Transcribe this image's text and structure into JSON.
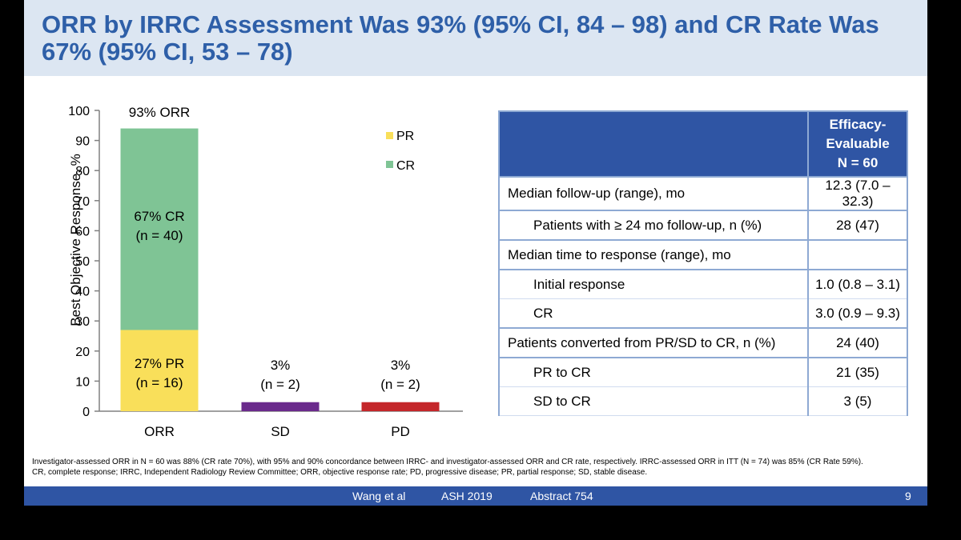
{
  "title": "ORR by IRRC Assessment Was 93% (95% CI, 84 – 98) and CR Rate Was 67% (95% CI, 53 – 78)",
  "colors": {
    "pr": "#f9df5a",
    "cr": "#7fc495",
    "sd": "#6a2a8c",
    "pd": "#c4262a",
    "header": "#2f55a4",
    "title": "#2e5fa8"
  },
  "chart_data": {
    "type": "bar",
    "stacked": true,
    "ylabel": "Best Objective Response, %",
    "ylim": [
      0,
      100
    ],
    "yticks": [
      0,
      10,
      20,
      30,
      40,
      50,
      60,
      70,
      80,
      90,
      100
    ],
    "categories": [
      "ORR",
      "SD",
      "PD"
    ],
    "series": [
      {
        "name": "PR",
        "values": [
          27,
          0,
          0
        ]
      },
      {
        "name": "CR",
        "values": [
          67,
          0,
          0
        ]
      },
      {
        "name": "SD",
        "values": [
          0,
          3,
          0
        ]
      },
      {
        "name": "PD",
        "values": [
          0,
          0,
          3
        ]
      }
    ],
    "legend": [
      "PR",
      "CR"
    ],
    "annotations": {
      "orr_total": "93% ORR",
      "cr_line1": "67% CR",
      "cr_line2": "(n = 40)",
      "pr_line1": "27% PR",
      "pr_line2": "(n = 16)",
      "sd_line1": "3%",
      "sd_line2": "(n = 2)",
      "pd_line1": "3%",
      "pd_line2": "(n = 2)"
    }
  },
  "table": {
    "header_line1": "Efficacy-",
    "header_line2": "Evaluable",
    "header_line3": "N = 60",
    "rows": [
      {
        "label": "Median follow-up (range), mo",
        "value": "12.3 (7.0 – 32.3)"
      },
      {
        "label": "Patients with ≥ 24 mo follow-up, n (%)",
        "value": "28 (47)"
      },
      {
        "label": "Median time to response (range), mo",
        "value": ""
      },
      {
        "label": "Initial response",
        "value": "1.0 (0.8 – 3.1)"
      },
      {
        "label": "CR",
        "value": "3.0 (0.9 – 9.3)"
      },
      {
        "label": "Patients converted from PR/SD to CR, n (%)",
        "value": "24 (40)"
      },
      {
        "label": "PR to CR",
        "value": "21 (35)"
      },
      {
        "label": "SD to CR",
        "value": "3 (5)"
      }
    ]
  },
  "footnote": {
    "line1": "Investigator-assessed ORR in N = 60 was 88% (CR rate 70%), with 95% and 90% concordance between IRRC- and investigator-assessed ORR and CR rate, respectively. IRRC-assessed ORR in ITT (N = 74) was 85% (CR Rate 59%).",
    "line2": "CR, complete response; IRRC, Independent Radiology Review Committee; ORR, objective response rate; PD, progressive disease; PR, partial response; SD, stable disease."
  },
  "footer": {
    "author": "Wang et al",
    "meeting": "ASH 2019",
    "abstract": "Abstract 754",
    "page": "9"
  }
}
